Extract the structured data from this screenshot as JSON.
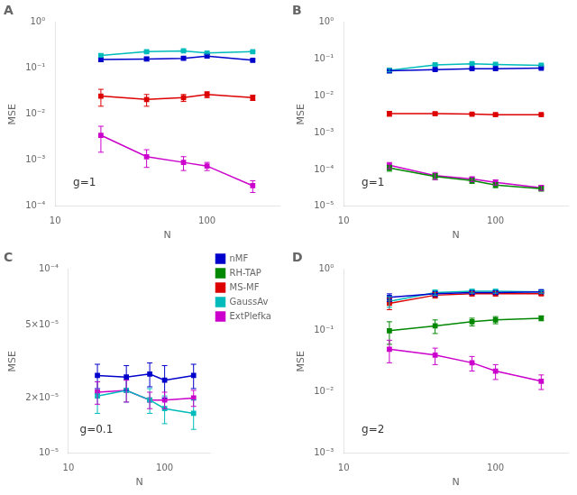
{
  "chart_data": [
    {
      "type": "line",
      "title": "A",
      "annotations": [
        "g=1"
      ],
      "x_label": "N",
      "y_label": "MSE",
      "log": true,
      "grid": false,
      "x": [
        20,
        40,
        70,
        100,
        200
      ],
      "xlim": [
        10,
        300
      ],
      "xticks": [
        10,
        100
      ],
      "ylim": [
        0.0001,
        1
      ],
      "yticks": [
        {
          "value": 0.0001,
          "label": "10⁻⁴"
        },
        {
          "value": 0.001,
          "label": "10⁻³"
        },
        {
          "value": 0.01,
          "label": "10⁻²"
        },
        {
          "value": 0.1,
          "label": "10⁻¹"
        },
        {
          "value": 1,
          "label": "10⁰"
        }
      ],
      "series": [
        {
          "name": "nMF",
          "color": "#0000cc",
          "marker": "square",
          "values": [
            0.155,
            0.16,
            0.165,
            0.185,
            0.15
          ],
          "yerr": [
            0.015,
            0.015,
            0.012,
            0.015,
            0.008
          ]
        },
        {
          "name": "MS-MF",
          "color": "#dd0000",
          "marker": "square",
          "values": [
            0.025,
            0.021,
            0.023,
            0.027,
            0.023
          ],
          "yerr": [
            0.01,
            0.006,
            0.004,
            0.004,
            0.003
          ]
        },
        {
          "name": "GaussAv",
          "color": "#00bbbb",
          "marker": "square",
          "values": [
            0.19,
            0.23,
            0.24,
            0.215,
            0.23
          ],
          "yerr": [
            0.015,
            0.012,
            0.01,
            0.01,
            0.008
          ]
        },
        {
          "name": "ExtPlefka",
          "color": "#cc00cc",
          "marker": "square",
          "values": [
            0.0035,
            0.0012,
            0.0009,
            0.00075,
            0.00028
          ],
          "yerr": [
            0.002,
            0.0005,
            0.0003,
            0.00015,
            8e-05
          ]
        }
      ]
    },
    {
      "type": "line",
      "title": "B",
      "annotations": [
        "g=1"
      ],
      "x_label": "N",
      "y_label": "MSE",
      "log": true,
      "grid": false,
      "x": [
        20,
        40,
        70,
        100,
        200
      ],
      "xlim": [
        10,
        300
      ],
      "xticks": [
        10,
        100
      ],
      "ylim": [
        1e-05,
        1
      ],
      "yticks": [
        {
          "value": 1e-05,
          "label": "10⁻⁵"
        },
        {
          "value": 0.0001,
          "label": "10⁻⁴"
        },
        {
          "value": 0.001,
          "label": "10⁻³"
        },
        {
          "value": 0.01,
          "label": "10⁻²"
        },
        {
          "value": 0.1,
          "label": "10⁻¹"
        },
        {
          "value": 1,
          "label": "10⁰"
        }
      ],
      "series": [
        {
          "name": "nMF",
          "color": "#0000cc",
          "marker": "square",
          "values": [
            0.048,
            0.052,
            0.055,
            0.055,
            0.057
          ],
          "yerr": [
            0.005,
            0.004,
            0.003,
            0.003,
            0.002
          ]
        },
        {
          "name": "RH-TAP",
          "color": "#008800",
          "marker": "square",
          "values": [
            0.00011,
            6.5e-05,
            5e-05,
            3.8e-05,
            3e-05
          ],
          "yerr": [
            2e-05,
            1.2e-05,
            8e-06,
            6e-06,
            4e-06
          ]
        },
        {
          "name": "MS-MF",
          "color": "#dd0000",
          "marker": "square",
          "values": [
            0.0033,
            0.0033,
            0.0032,
            0.0031,
            0.0031
          ],
          "yerr": [
            0.0005,
            0.0003,
            0.0002,
            0.0002,
            0.0001
          ]
        },
        {
          "name": "GaussAv",
          "color": "#00bbbb",
          "marker": "square",
          "values": [
            0.05,
            0.07,
            0.075,
            0.072,
            0.068
          ],
          "yerr": [
            0.005,
            0.005,
            0.004,
            0.003,
            0.003
          ]
        },
        {
          "name": "ExtPlefka",
          "color": "#cc00cc",
          "marker": "square",
          "values": [
            0.00013,
            6.8e-05,
            5.5e-05,
            4.5e-05,
            3.2e-05
          ],
          "yerr": [
            2.5e-05,
            1.5e-05,
            8e-06,
            7e-06,
            5e-06
          ]
        }
      ]
    },
    {
      "type": "line",
      "title": "C",
      "annotations": [
        "g=0.1"
      ],
      "x_label": "N",
      "y_label": "MSE",
      "log": true,
      "grid": false,
      "legend": "upper right",
      "x": [
        20,
        40,
        70,
        100,
        200
      ],
      "xlim": [
        10,
        300
      ],
      "xticks": [
        10,
        100
      ],
      "ylim": [
        1e-05,
        0.0001
      ],
      "yticks": [
        {
          "value": 1e-05,
          "label": "10⁻⁵"
        },
        {
          "value": 2e-05,
          "label": "2×10⁻⁵"
        },
        {
          "value": 5e-05,
          "label": "5×10⁻⁵"
        },
        {
          "value": 0.0001,
          "label": "10⁻⁴"
        }
      ],
      "series": [
        {
          "name": "nMF",
          "color": "#0000cc",
          "marker": "square",
          "values": [
            2.65e-05,
            2.6e-05,
            2.7e-05,
            2.5e-05,
            2.65e-05
          ],
          "yerr": [
            4e-06,
            4e-06,
            4e-06,
            5e-06,
            4e-06
          ]
        },
        {
          "name": "RH-TAP",
          "color": "#008800",
          "marker": "square",
          "values": [
            null,
            null,
            null,
            null,
            null
          ],
          "yerr": [
            null,
            null,
            null,
            null,
            null
          ]
        },
        {
          "name": "MS-MF",
          "color": "#dd0000",
          "marker": "square",
          "values": [
            null,
            null,
            null,
            null,
            null
          ],
          "yerr": [
            null,
            null,
            null,
            null,
            null
          ]
        },
        {
          "name": "GaussAv",
          "color": "#00bbbb",
          "marker": "square",
          "values": [
            2.05e-05,
            2.2e-05,
            1.95e-05,
            1.75e-05,
            1.65e-05
          ],
          "yerr": [
            4e-06,
            3e-06,
            3e-06,
            3e-06,
            3e-06
          ]
        },
        {
          "name": "ExtPlefka",
          "color": "#cc00cc",
          "marker": "square",
          "values": [
            2.15e-05,
            2.2e-05,
            1.95e-05,
            1.95e-05,
            2e-05
          ],
          "yerr": [
            3e-06,
            3e-06,
            2e-06,
            2e-06,
            2e-06
          ]
        }
      ]
    },
    {
      "type": "line",
      "title": "D",
      "annotations": [
        "g=2"
      ],
      "x_label": "N",
      "y_label": "MSE",
      "log": true,
      "grid": false,
      "x": [
        20,
        40,
        70,
        100,
        200
      ],
      "xlim": [
        10,
        300
      ],
      "xticks": [
        10,
        100
      ],
      "ylim": [
        0.001,
        1
      ],
      "yticks": [
        {
          "value": 0.001,
          "label": "10⁻³"
        },
        {
          "value": 0.01,
          "label": "10⁻²"
        },
        {
          "value": 0.1,
          "label": "10⁻¹"
        },
        {
          "value": 1,
          "label": "10⁰"
        }
      ],
      "series": [
        {
          "name": "nMF",
          "color": "#0000cc",
          "marker": "square",
          "values": [
            0.35,
            0.4,
            0.42,
            0.42,
            0.43
          ],
          "yerr": [
            0.05,
            0.04,
            0.03,
            0.03,
            0.02
          ]
        },
        {
          "name": "RH-TAP",
          "color": "#008800",
          "marker": "square",
          "values": [
            0.1,
            0.12,
            0.14,
            0.15,
            0.16
          ],
          "yerr": [
            0.04,
            0.03,
            0.02,
            0.02,
            0.015
          ]
        },
        {
          "name": "MS-MF",
          "color": "#dd0000",
          "marker": "square",
          "values": [
            0.28,
            0.38,
            0.4,
            0.4,
            0.4
          ],
          "yerr": [
            0.06,
            0.04,
            0.03,
            0.03,
            0.02
          ]
        },
        {
          "name": "GaussAv",
          "color": "#00bbbb",
          "marker": "square",
          "values": [
            0.3,
            0.42,
            0.44,
            0.44,
            0.43
          ],
          "yerr": [
            0.06,
            0.04,
            0.03,
            0.03,
            0.02
          ]
        },
        {
          "name": "ExtPlefka",
          "color": "#cc00cc",
          "marker": "square",
          "values": [
            0.05,
            0.04,
            0.03,
            0.022,
            0.015
          ],
          "yerr": [
            0.02,
            0.012,
            0.008,
            0.006,
            0.004
          ]
        }
      ]
    }
  ]
}
